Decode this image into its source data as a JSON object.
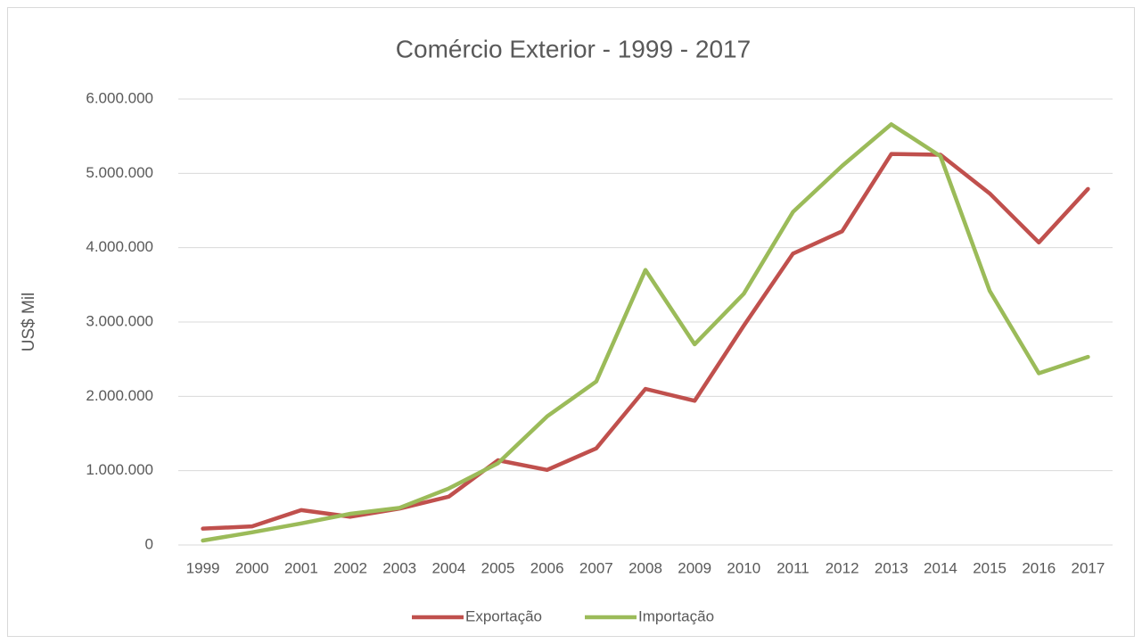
{
  "chart_data": {
    "type": "line",
    "title": "Comércio Exterior - 1999 - 2017",
    "y_label": "US$ Mil",
    "categories": [
      "1999",
      "2000",
      "2001",
      "2002",
      "2003",
      "2004",
      "2005",
      "2006",
      "2007",
      "2008",
      "2009",
      "2010",
      "2011",
      "2012",
      "2013",
      "2014",
      "2015",
      "2016",
      "2017"
    ],
    "series": [
      {
        "name": "Exportação",
        "color": "#c0504d",
        "values": [
          220000,
          250000,
          470000,
          380000,
          490000,
          650000,
          1140000,
          1010000,
          1300000,
          2100000,
          1940000,
          2950000,
          3920000,
          4220000,
          5260000,
          5250000,
          4730000,
          4070000,
          4790000
        ]
      },
      {
        "name": "Importação",
        "color": "#9bbb59",
        "values": [
          60000,
          170000,
          290000,
          420000,
          500000,
          760000,
          1100000,
          1730000,
          2200000,
          3700000,
          2700000,
          3380000,
          4480000,
          5100000,
          5660000,
          5230000,
          3420000,
          2310000,
          2530000
        ]
      }
    ],
    "ylim": [
      0,
      6000000
    ],
    "yticks": [
      0,
      {
        "value": 1000000,
        "label": "1.000.000"
      },
      {
        "value": 2000000,
        "label": "2.000.000"
      },
      {
        "value": 3000000,
        "label": "3.000.000"
      },
      {
        "value": 4000000,
        "label": "4.000.000"
      },
      {
        "value": 5000000,
        "label": "5.000.000"
      },
      {
        "value": 6000000,
        "label": "6.000.000"
      }
    ],
    "grid": true,
    "legend": "bottom"
  }
}
